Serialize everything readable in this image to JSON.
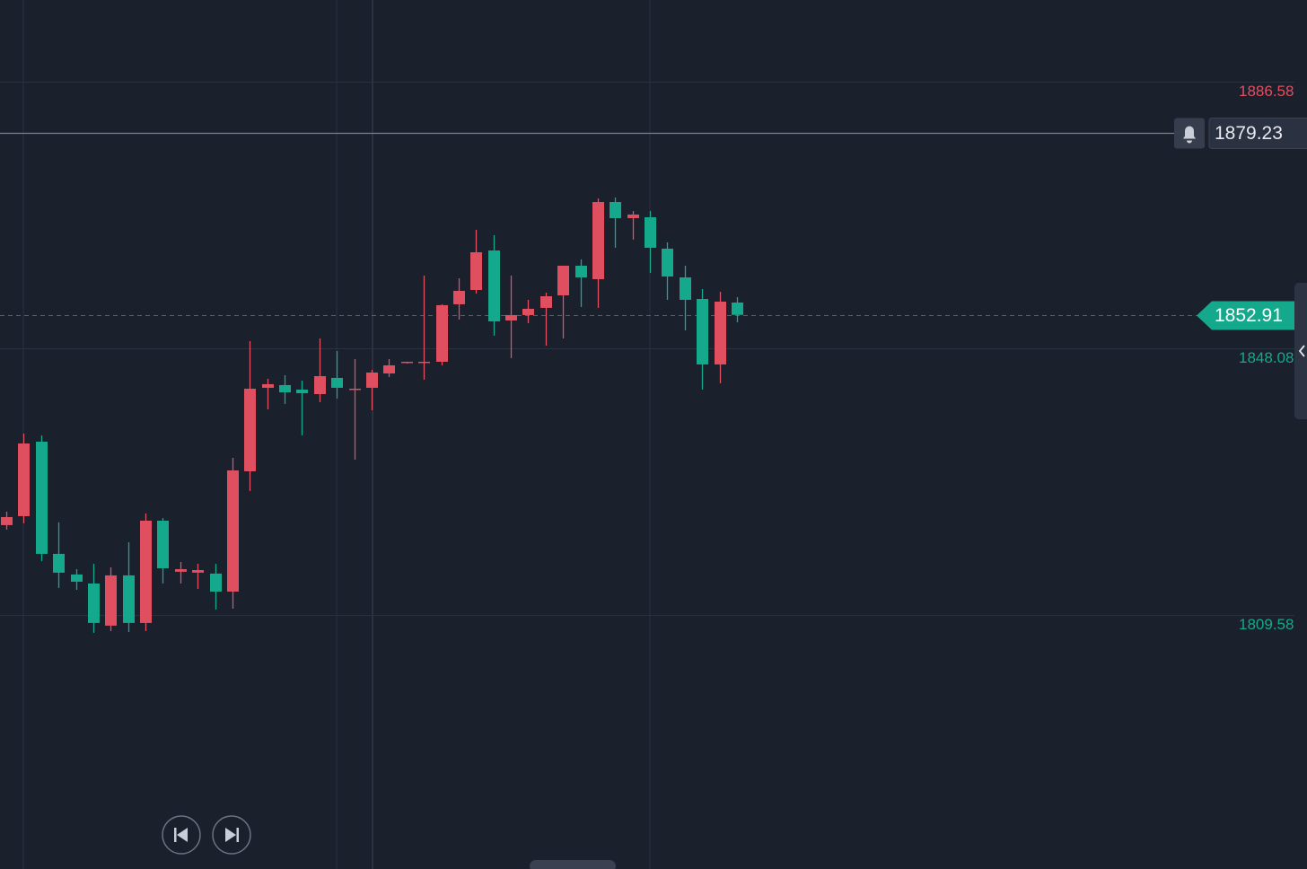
{
  "chart_data": {
    "type": "candlestick",
    "up_color": "#e04f5f",
    "down_color": "#14a98c",
    "ylim": [
      1772.89,
      1898.38
    ],
    "yticks": [
      1809.58,
      1848.08,
      1886.58
    ],
    "ytick_colors": [
      "#14a98c",
      "#14a98c",
      "#e04f5f"
    ],
    "grid": true,
    "alert_price": 1879.23,
    "last_price": 1852.91,
    "open": [
      1822.55,
      1823.84,
      1834.6,
      1818.4,
      1815.42,
      1814.12,
      1808.03,
      1815.29,
      1808.42,
      1823.19,
      1815.81,
      1815.68,
      1815.55,
      1812.95,
      1830.32,
      1842.38,
      1842.77,
      1842.12,
      1841.47,
      1843.81,
      1842.12,
      1842.38,
      1844.45,
      1846.01,
      1846.01,
      1846.14,
      1854.44,
      1856.51,
      1862.21,
      1852.1,
      1852.88,
      1853.92,
      1855.73,
      1860.01,
      1858.06,
      1869.21,
      1866.88,
      1867.01,
      1862.47,
      1858.32,
      1855.21,
      1845.75,
      1854.69
    ],
    "high": [
      1824.49,
      1835.77,
      1835.51,
      1822.94,
      1816.19,
      1816.97,
      1816.45,
      1820.08,
      1824.23,
      1823.58,
      1817.23,
      1816.97,
      1816.97,
      1832.27,
      1849.12,
      1843.68,
      1844.19,
      1843.42,
      1849.51,
      1847.69,
      1846.53,
      1844.97,
      1846.53,
      1846.14,
      1858.58,
      1854.44,
      1858.19,
      1865.19,
      1864.42,
      1858.58,
      1855.08,
      1856.12,
      1860.01,
      1860.92,
      1869.73,
      1869.86,
      1867.92,
      1867.92,
      1863.38,
      1860.01,
      1856.64,
      1856.25,
      1855.47
    ],
    "low": [
      1821.9,
      1822.81,
      1817.36,
      1813.47,
      1813.21,
      1806.99,
      1807.25,
      1807.12,
      1807.25,
      1814.12,
      1814.12,
      1813.34,
      1810.36,
      1810.49,
      1827.47,
      1839.27,
      1840.05,
      1835.51,
      1840.31,
      1840.82,
      1832.01,
      1839.14,
      1843.94,
      1845.88,
      1843.55,
      1845.62,
      1852.23,
      1855.99,
      1849.9,
      1846.66,
      1851.71,
      1848.47,
      1849.51,
      1854.05,
      1853.92,
      1862.6,
      1863.77,
      1858.97,
      1855.08,
      1850.68,
      1842.12,
      1843.03,
      1851.84
    ],
    "close": [
      1823.71,
      1834.34,
      1818.4,
      1815.68,
      1814.38,
      1808.42,
      1815.29,
      1808.42,
      1823.19,
      1816.32,
      1816.19,
      1816.06,
      1812.95,
      1830.45,
      1842.25,
      1842.9,
      1841.73,
      1841.6,
      1844.06,
      1842.38,
      1842.25,
      1844.58,
      1845.62,
      1846.14,
      1846.14,
      1854.31,
      1856.38,
      1861.95,
      1851.97,
      1852.88,
      1853.79,
      1855.6,
      1860.01,
      1858.32,
      1869.21,
      1866.88,
      1867.4,
      1862.6,
      1858.45,
      1855.08,
      1845.75,
      1854.82,
      1852.91
    ]
  }
}
